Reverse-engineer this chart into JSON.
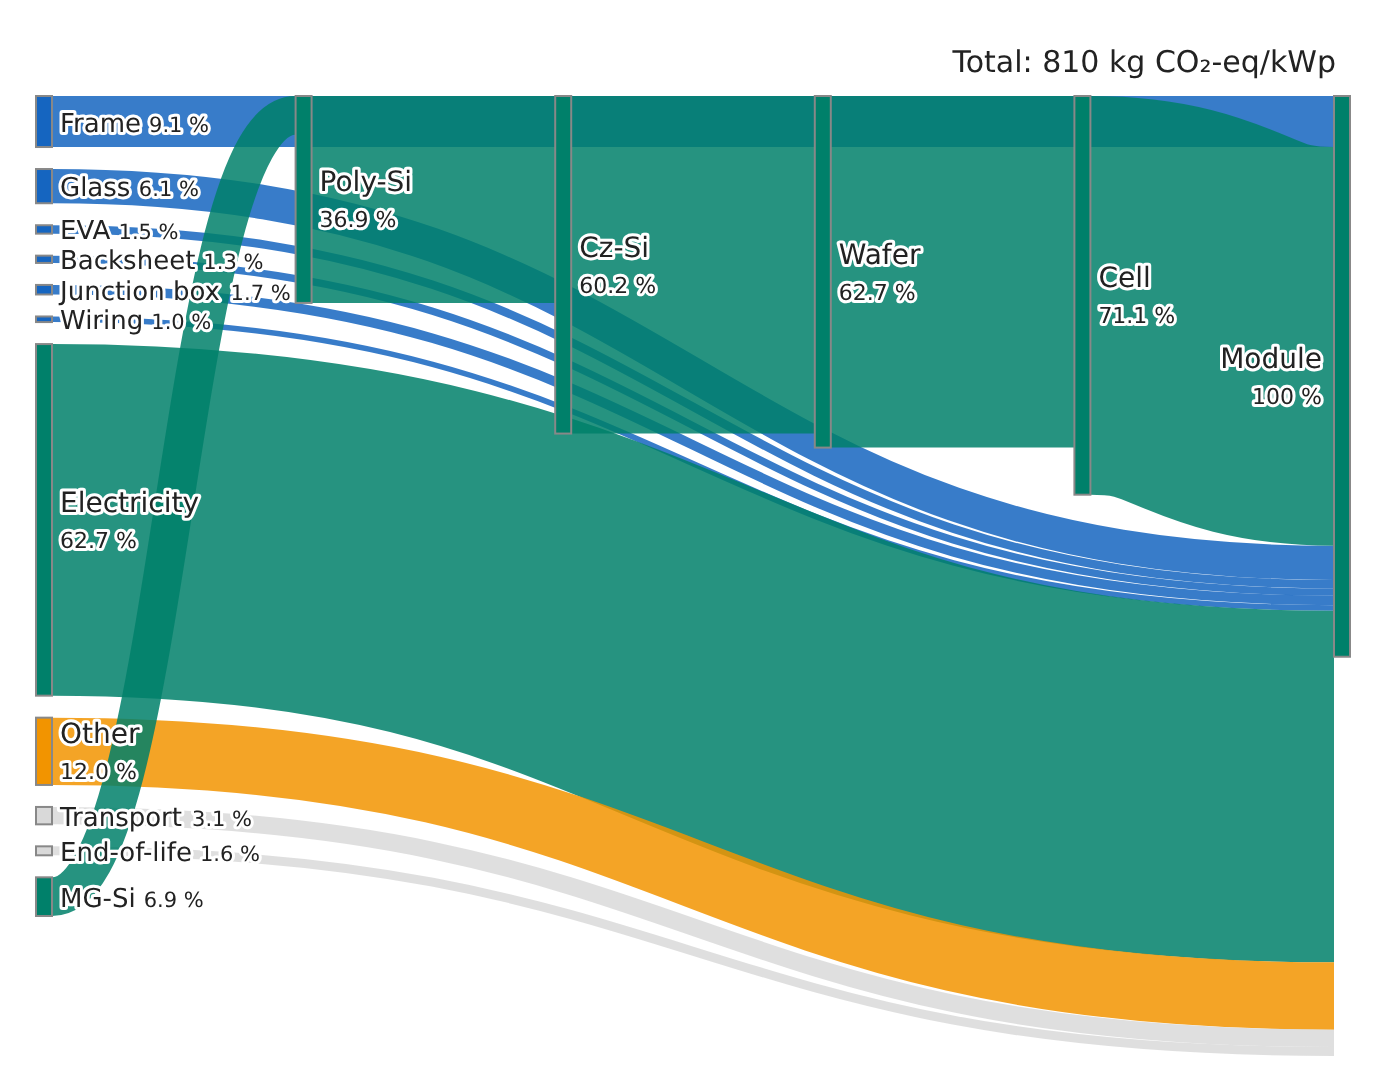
{
  "chart_data": {
    "type": "other",
    "title": "Total: 810 kg CO₂-eq/kWp",
    "categories": [
      "Frame",
      "Glass",
      "EVA",
      "Backsheet",
      "Junction box",
      "Wiring",
      "Electricity",
      "Other",
      "Transport",
      "End-of-life",
      "MG-Si",
      "Poly-Si",
      "Cz-Si",
      "Wafer",
      "Cell",
      "Module"
    ],
    "values": [
      9.1,
      6.1,
      1.5,
      1.3,
      1.7,
      1.0,
      62.7,
      12.0,
      3.1,
      1.6,
      6.9,
      36.9,
      60.2,
      62.7,
      71.1,
      100
    ],
    "value_labels": [
      "9.1 %",
      "6.1 %",
      "1.5 %",
      "1.3 %",
      "1.7 %",
      "1.0 %",
      "62.7 %",
      "12.0 %",
      "3.1 %",
      "1.6 %",
      "6.9 %",
      "36.9 %",
      "60.2 %",
      "62.7 %",
      "71.1 %",
      "100 %"
    ],
    "colors": [
      "#1565c0",
      "#1565c0",
      "#1565c0",
      "#1565c0",
      "#1565c0",
      "#1565c0",
      "#00806a",
      "#f29400",
      "#d9d9d9",
      "#d9d9d9",
      "#00806a",
      "#00806a",
      "#00806a",
      "#00806a",
      "#00806a",
      "#00806a"
    ]
  }
}
